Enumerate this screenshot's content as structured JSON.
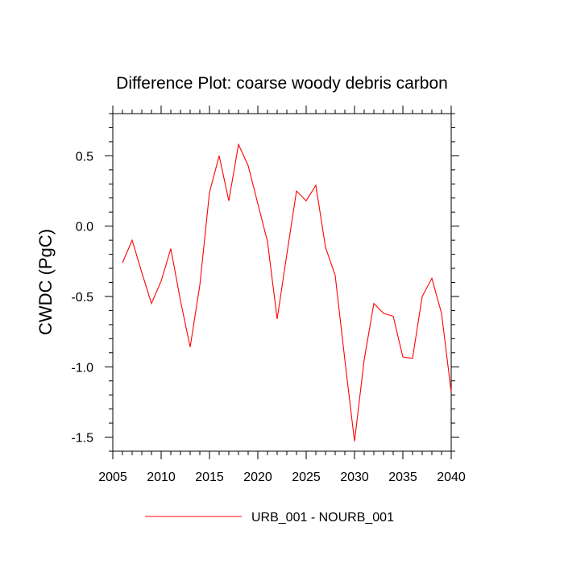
{
  "chart_data": {
    "type": "line",
    "title": "Difference Plot: coarse woody debris carbon",
    "xlabel": "",
    "ylabel": "CWDC  (PgC)",
    "xlim": [
      2005,
      2040
    ],
    "ylim": [
      -1.6,
      0.8
    ],
    "x_ticks": [
      2005,
      2010,
      2015,
      2020,
      2025,
      2030,
      2035,
      2040
    ],
    "x_tick_labels": [
      "2005",
      "2010",
      "2015",
      "2020",
      "2025",
      "2030",
      "2035",
      "2040"
    ],
    "y_ticks": [
      0.5,
      0.0,
      -0.5,
      -1.0,
      -1.5
    ],
    "y_tick_labels": [
      "0.5",
      "0.0",
      "-0.5",
      "-1.0",
      "-1.5"
    ],
    "grid": false,
    "legend_position": "bottom-center",
    "series": [
      {
        "name": "URB_001 - NOURB_001",
        "color": "#ff0000",
        "x": [
          2006,
          2007,
          2008,
          2009,
          2010,
          2011,
          2012,
          2013,
          2014,
          2015,
          2016,
          2017,
          2018,
          2019,
          2020,
          2021,
          2022,
          2023,
          2024,
          2025,
          2026,
          2027,
          2028,
          2029,
          2030,
          2031,
          2032,
          2033,
          2034,
          2035,
          2036,
          2037,
          2038,
          2039,
          2040
        ],
        "y": [
          -0.26,
          -0.1,
          -0.33,
          -0.55,
          -0.39,
          -0.16,
          -0.53,
          -0.86,
          -0.42,
          0.24,
          0.5,
          0.18,
          0.58,
          0.43,
          0.16,
          -0.11,
          -0.66,
          -0.2,
          0.25,
          0.18,
          0.29,
          -0.15,
          -0.35,
          -0.95,
          -1.53,
          -0.95,
          -0.55,
          -0.62,
          -0.64,
          -0.93,
          -0.94,
          -0.5,
          -0.37,
          -0.62,
          -1.18
        ]
      }
    ]
  }
}
